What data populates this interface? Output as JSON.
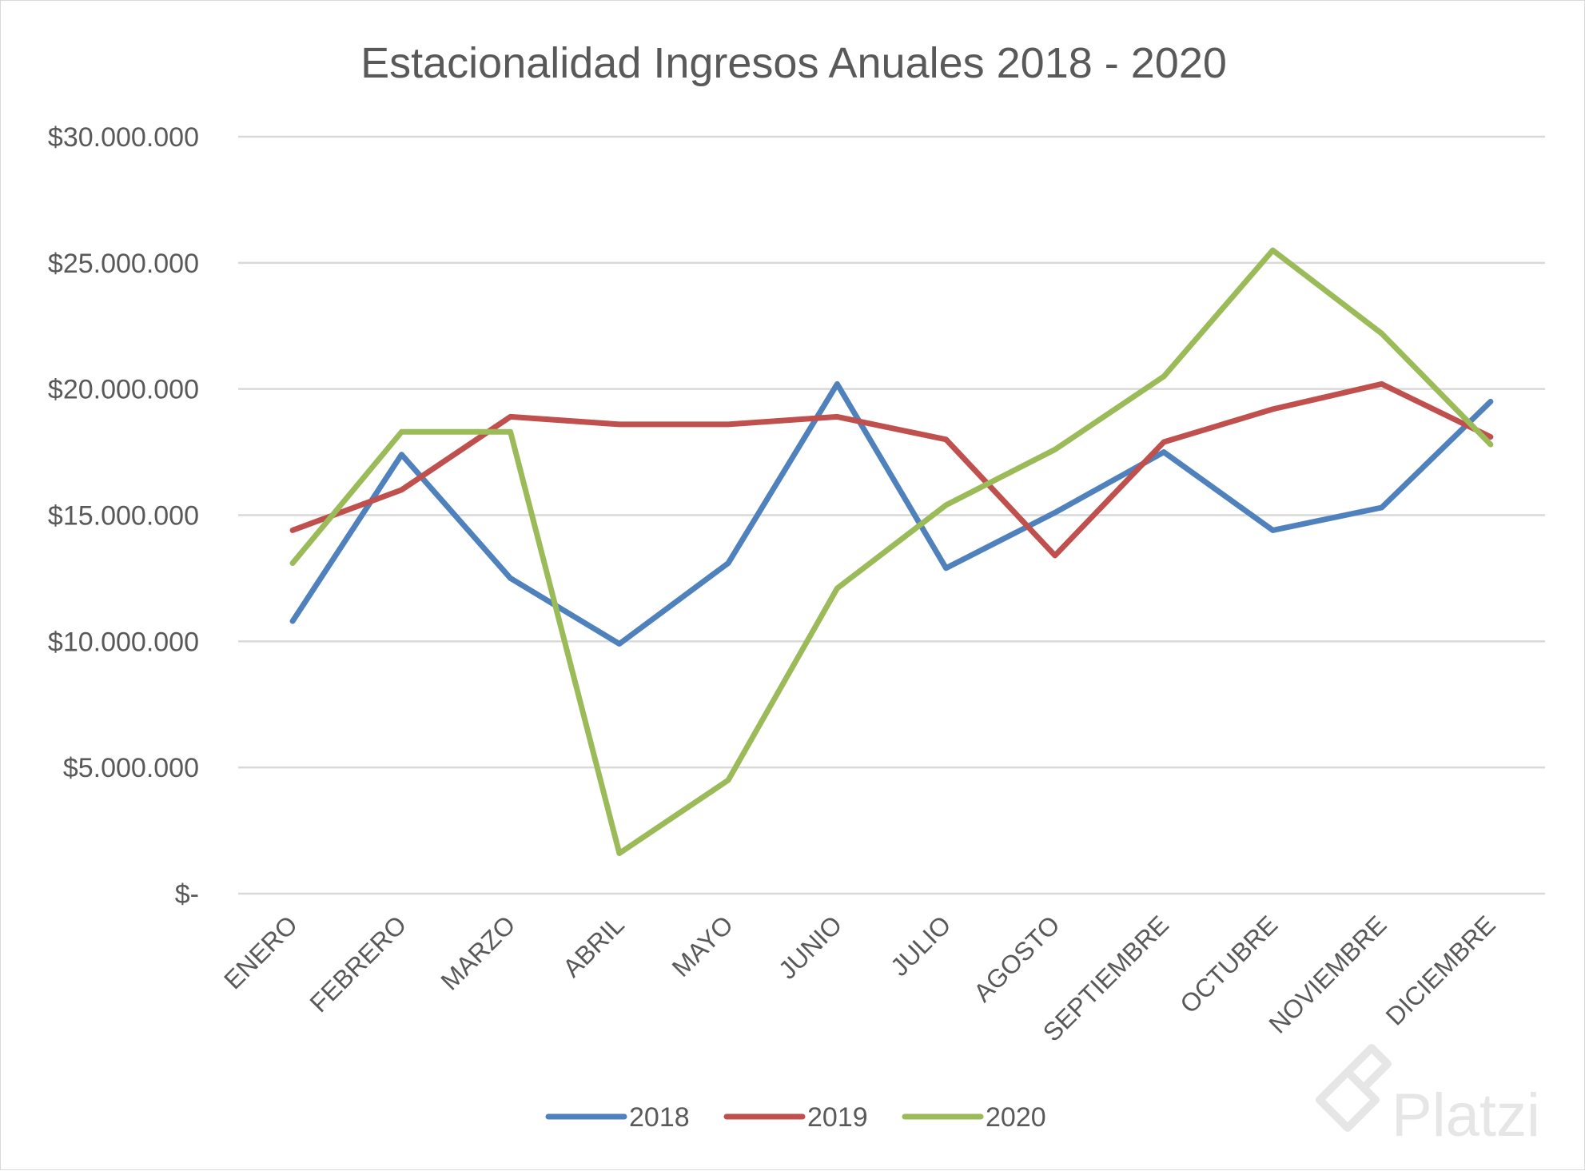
{
  "chart_data": {
    "type": "line",
    "title": "Estacionalidad Ingresos Anuales 2018 - 2020",
    "xlabel": "",
    "ylabel": "",
    "categories": [
      "ENERO",
      "FEBRERO",
      "MARZO",
      "ABRIL",
      "MAYO",
      "JUNIO",
      "JULIO",
      "AGOSTO",
      "SEPTIEMBRE",
      "OCTUBRE",
      "NOVIEMBRE",
      "DICIEMBRE"
    ],
    "ylim": [
      0,
      30000000
    ],
    "ytick_values": [
      0,
      5000000,
      10000000,
      15000000,
      20000000,
      25000000,
      30000000
    ],
    "ytick_labels": [
      "$-",
      "$5.000.000",
      "$10.000.000",
      "$15.000.000",
      "$20.000.000",
      "$25.000.000",
      "$30.000.000"
    ],
    "grid": true,
    "legend_position": "bottom",
    "series": [
      {
        "name": "2018",
        "color": "#4f81bd",
        "values": [
          10800000,
          17400000,
          12500000,
          9900000,
          13100000,
          20200000,
          12900000,
          15100000,
          17500000,
          14400000,
          15300000,
          19500000
        ]
      },
      {
        "name": "2019",
        "color": "#c0504d",
        "values": [
          14400000,
          16000000,
          18900000,
          18600000,
          18600000,
          18900000,
          18000000,
          13400000,
          17900000,
          19200000,
          20200000,
          18100000
        ]
      },
      {
        "name": "2020",
        "color": "#9bbb59",
        "values": [
          13100000,
          18300000,
          18300000,
          1600000,
          4500000,
          12100000,
          15400000,
          17600000,
          20500000,
          25500000,
          22200000,
          17800000
        ]
      }
    ]
  },
  "watermark": {
    "text": "Platzi",
    "icon": "platzi-logo-icon"
  }
}
